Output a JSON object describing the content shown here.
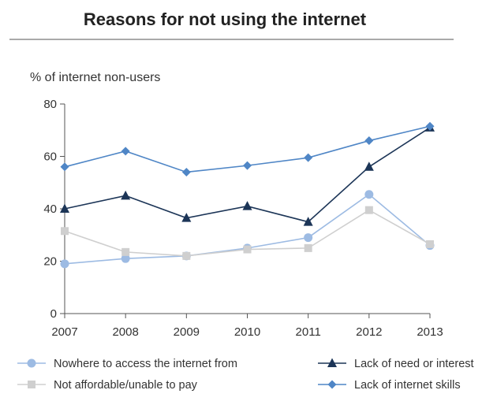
{
  "chart_data": {
    "type": "line",
    "title": "Reasons for not using the internet",
    "ylabel": "% of internet non-users",
    "xlabel": "",
    "x": [
      "2007",
      "2008",
      "2009",
      "2010",
      "2011",
      "2012",
      "2013"
    ],
    "ylim": [
      0,
      80
    ],
    "yticks": [
      0,
      20,
      40,
      60,
      80
    ],
    "grid": false,
    "legend_position": "bottom",
    "series": [
      {
        "name": "Nowhere to access the internet from",
        "values": [
          19,
          21,
          22,
          25,
          29,
          45.5,
          26
        ],
        "color": "#9dbbe3",
        "marker": "circle"
      },
      {
        "name": "Not affordable/unable to pay",
        "values": [
          31.5,
          23.5,
          22,
          24.5,
          25,
          39.5,
          26.5
        ],
        "color": "#cfcfcf",
        "marker": "square"
      },
      {
        "name": "Lack of need or interest",
        "values": [
          40,
          45,
          36.5,
          41,
          35,
          56,
          71
        ],
        "color": "#1c3557",
        "marker": "triangle"
      },
      {
        "name": "Lack of internet skills",
        "values": [
          56,
          62,
          54,
          56.5,
          59.5,
          66,
          71.5
        ],
        "color": "#4f86c6",
        "marker": "diamond"
      }
    ]
  }
}
